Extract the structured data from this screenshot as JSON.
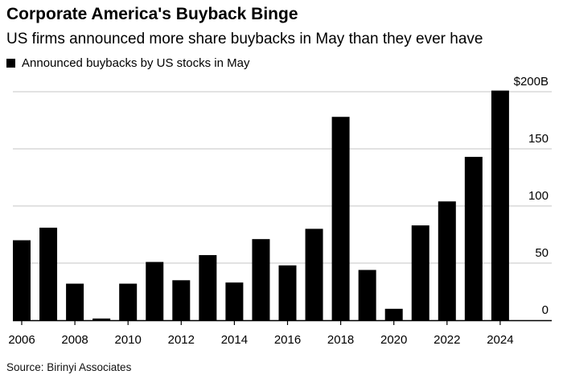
{
  "title": "Corporate America's Buyback Binge",
  "subtitle": "US firms announced more share buybacks in May than they ever have",
  "source": "Source: Birinyi Associates",
  "chart_data": {
    "type": "bar",
    "title": "Corporate America's Buyback Binge",
    "subtitle": "US firms announced more share buybacks in May than they ever have",
    "legend_position": "top-left",
    "categories": [
      "2006",
      "2007",
      "2008",
      "2009",
      "2010",
      "2011",
      "2012",
      "2013",
      "2014",
      "2015",
      "2016",
      "2017",
      "2018",
      "2019",
      "2020",
      "2021",
      "2022",
      "2023",
      "2024"
    ],
    "series": [
      {
        "name": "Announced buybacks by US stocks in May",
        "color": "#000000",
        "values": [
          70,
          81,
          32,
          1.5,
          32,
          51,
          35,
          57,
          33,
          71,
          48,
          80,
          178,
          44,
          10,
          83,
          104,
          143,
          201
        ]
      }
    ],
    "x_tick_labels": [
      "2006",
      "2008",
      "2010",
      "2012",
      "2014",
      "2016",
      "2018",
      "2020",
      "2022",
      "2024"
    ],
    "y_tick_labels": [
      "0",
      "50",
      "100",
      "150",
      "$200B"
    ],
    "y_ticks": [
      0,
      50,
      100,
      150,
      200
    ],
    "ylim": [
      0,
      200
    ],
    "y_axis_position": "right",
    "grid": true,
    "xlabel": "",
    "ylabel": ""
  }
}
